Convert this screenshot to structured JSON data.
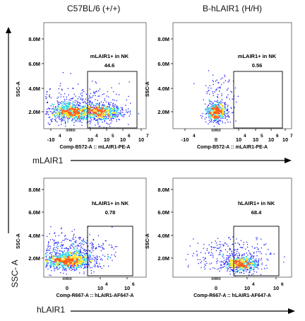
{
  "column_titles": [
    "C57BL/6 (+/+)",
    "B-hLAIR1 (H/H)"
  ],
  "row_labels": [
    "mLAIR1",
    "hLAIR1"
  ],
  "y_side_label": "SSC- A",
  "chart_data": [
    {
      "type": "scatter",
      "title": "",
      "xlabel": "Comp-B572-A :: mLAIR1-PE-A",
      "ylabel": "SSC-A",
      "y_ticks": [
        "2.0M",
        "4.0M",
        "6.0M",
        "8.0M"
      ],
      "x_ticks": [
        "-10",
        "4",
        "0",
        "10",
        "4",
        "10",
        "5",
        "10",
        "6",
        "10",
        "7"
      ],
      "gate": {
        "label": "mLAIR1+ in NK",
        "value": "44.6"
      },
      "population": "two clusters: negative near 0 and positive near 10^4-10^5, SSC around 1.2M"
    },
    {
      "type": "scatter",
      "title": "",
      "xlabel": "Comp-B572-A :: mLAIR1-PE-A",
      "ylabel": "SSC-A",
      "y_ticks": [
        "2.0M",
        "4.0M",
        "6.0M",
        "8.0M"
      ],
      "x_ticks": [
        "-10",
        "4",
        "0",
        "10",
        "4",
        "10",
        "5",
        "10",
        "6",
        "10",
        "7"
      ],
      "gate": {
        "label": "mLAIR1+ in NK",
        "value": "0.56"
      },
      "population": "single negative cluster near 0, SSC around 1.2M"
    },
    {
      "type": "scatter",
      "title": "",
      "xlabel": "Comp-R667-A :: hLAIR1-AF647-A",
      "ylabel": "SSC-A",
      "y_ticks": [
        "2.0M",
        "4.0M",
        "6.0M",
        "8.0M"
      ],
      "x_ticks": [
        "0",
        "10",
        "4",
        "10",
        "6"
      ],
      "gate": {
        "label": "hLAIR1+ in NK",
        "value": "0.78"
      },
      "population": "single negative cluster near 0, SSC around 1.3M"
    },
    {
      "type": "scatter",
      "title": "",
      "xlabel": "Comp-R667-A :: hLAIR1-AF647-A",
      "ylabel": "SSC-A",
      "y_ticks": [
        "2.0M",
        "4.0M",
        "6.0M",
        "8.0M"
      ],
      "x_ticks": [
        "0",
        "10",
        "4",
        "10",
        "6"
      ],
      "gate": {
        "label": "hLAIR1+ in NK",
        "value": "68.4"
      },
      "population": "positive cluster near 10^4, SSC around 1.0M"
    }
  ],
  "colors": {
    "low": "#1a1aff",
    "mid": "#1fd3e0",
    "hot": "#ffe11a",
    "peak": "#ff5a1a",
    "axis": "#000000"
  }
}
